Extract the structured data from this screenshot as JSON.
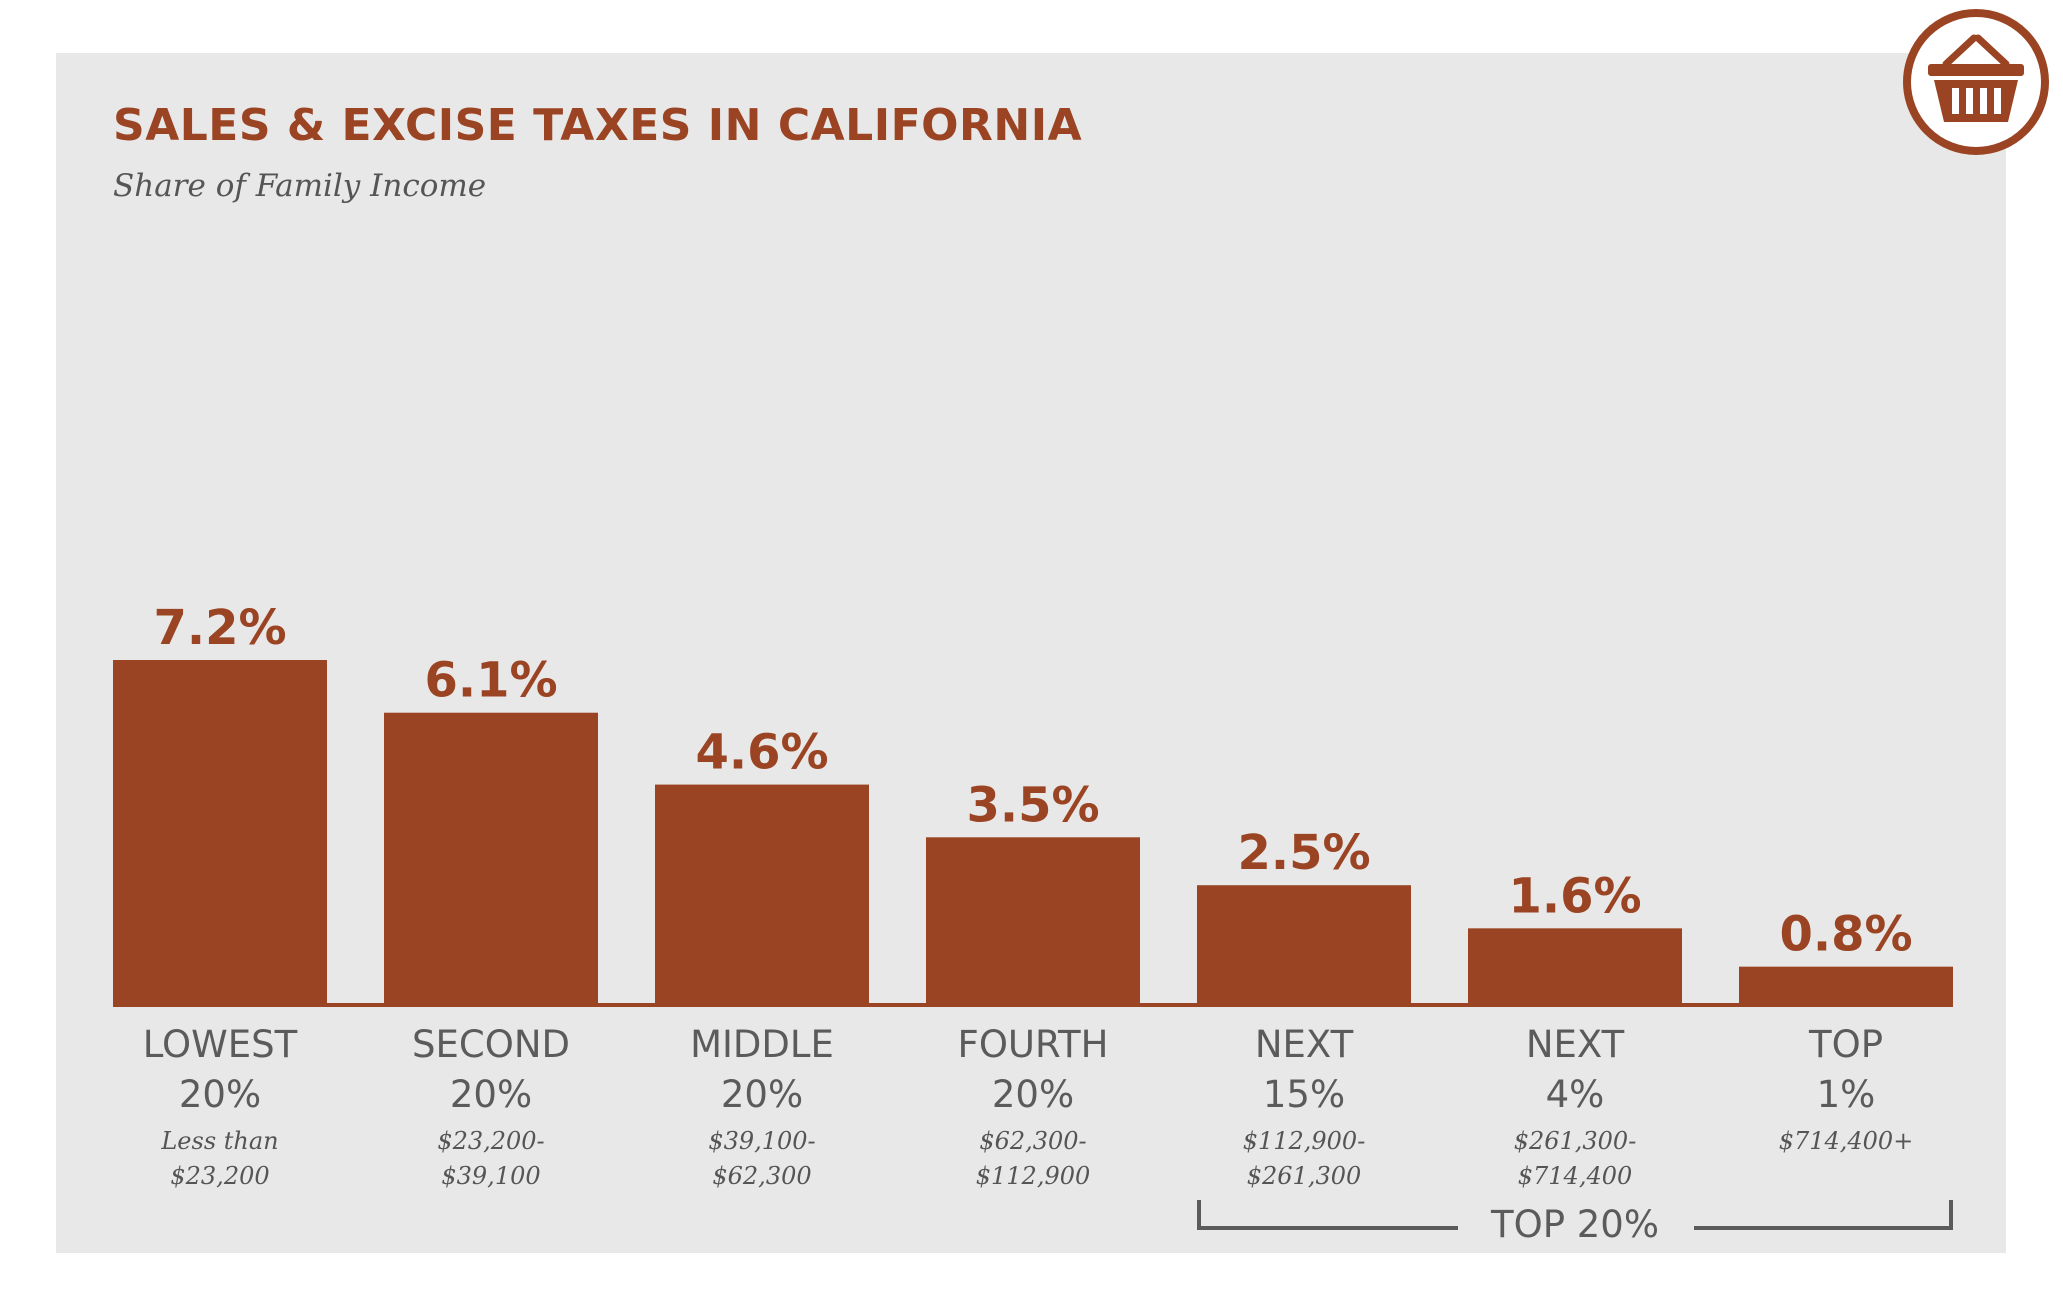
{
  "header": {
    "title": "SALES & EXCISE TAXES IN CALIFORNIA",
    "subtitle": "Share of Family Income"
  },
  "icon": {
    "name": "shopping-basket-icon",
    "color": "#9a4423"
  },
  "colors": {
    "bar": "#9a4423",
    "panel_background": "#e9e8e8",
    "label_text": "#5b5b5b"
  },
  "chart_data": {
    "type": "bar",
    "title": "SALES & EXCISE TAXES IN CALIFORNIA",
    "subtitle": "Share of Family Income",
    "categories": [
      {
        "name": "LOWEST",
        "share": "20%",
        "range": [
          "Less than",
          "$23,200"
        ]
      },
      {
        "name": "SECOND",
        "share": "20%",
        "range": [
          "$23,200-",
          "$39,100"
        ]
      },
      {
        "name": "MIDDLE",
        "share": "20%",
        "range": [
          "$39,100-",
          "$62,300"
        ]
      },
      {
        "name": "FOURTH",
        "share": "20%",
        "range": [
          "$62,300-",
          "$112,900"
        ]
      },
      {
        "name": "NEXT",
        "share": "15%",
        "range": [
          "$112,900-",
          "$261,300"
        ]
      },
      {
        "name": "NEXT",
        "share": "4%",
        "range": [
          "$261,300-",
          "$714,400"
        ]
      },
      {
        "name": "TOP",
        "share": "1%",
        "range": [
          "$714,400+"
        ]
      }
    ],
    "values": [
      7.2,
      6.1,
      4.6,
      3.5,
      2.5,
      1.6,
      0.8
    ],
    "value_labels": [
      "7.2%",
      "6.1%",
      "4.6%",
      "3.5%",
      "2.5%",
      "1.6%",
      "0.8%"
    ],
    "ylim": [
      0,
      7.2
    ],
    "grid": false,
    "legend": "none",
    "group_bracket": {
      "label": "TOP 20%",
      "from_index": 4,
      "to_index": 6
    }
  }
}
